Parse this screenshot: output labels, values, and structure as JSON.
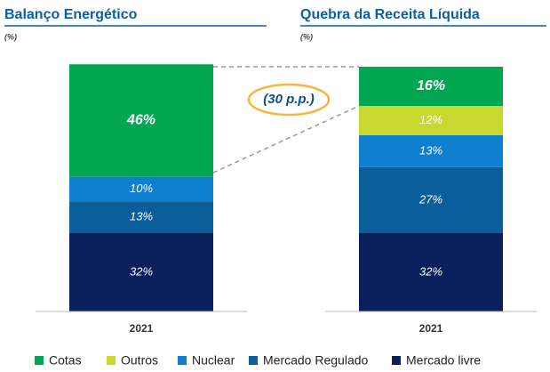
{
  "chart_data": [
    {
      "type": "bar",
      "title": "Balanço Energético",
      "subtitle": "(%)",
      "categories": [
        "2021"
      ],
      "ylim": [
        0,
        100
      ],
      "series": [
        {
          "name": "Cotas",
          "color": "#00a651",
          "values": [
            46
          ],
          "value_labels": [
            "46%"
          ]
        },
        {
          "name": "Nuclear",
          "color": "#0f7fcf",
          "values": [
            10
          ],
          "value_labels": [
            "10%"
          ]
        },
        {
          "name": "Mercado Regulado",
          "color": "#0a5f9a",
          "values": [
            13
          ],
          "value_labels": [
            "13%"
          ]
        },
        {
          "name": "Mercado livre",
          "color": "#0a1f5c",
          "values": [
            32
          ],
          "value_labels": [
            "32%"
          ]
        }
      ]
    },
    {
      "type": "bar",
      "title": "Quebra da Receita Líquida",
      "subtitle": "(%)",
      "categories": [
        "2021"
      ],
      "ylim": [
        0,
        100
      ],
      "series": [
        {
          "name": "Cotas",
          "color": "#00a651",
          "values": [
            16
          ],
          "value_labels": [
            "16%"
          ]
        },
        {
          "name": "Outros",
          "color": "#c8d82e",
          "values": [
            12
          ],
          "value_labels": [
            "12%"
          ]
        },
        {
          "name": "Nuclear",
          "color": "#0f7fcf",
          "values": [
            13
          ],
          "value_labels": [
            "13%"
          ]
        },
        {
          "name": "Mercado Regulado",
          "color": "#0a5f9a",
          "values": [
            27
          ],
          "value_labels": [
            "27%"
          ]
        },
        {
          "name": "Mercado livre",
          "color": "#0a1f5c",
          "values": [
            32
          ],
          "value_labels": [
            "32%"
          ]
        }
      ]
    }
  ],
  "annotation": "(30 p.p.)"
}
